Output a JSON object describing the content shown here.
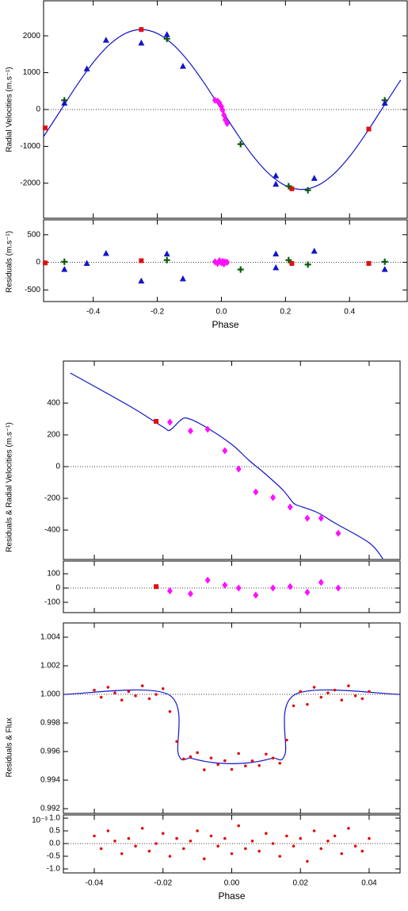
{
  "chart_data": [
    {
      "type": "scatter",
      "ylabel": "Radial Velocities (m.s⁻¹)",
      "xlim": [
        -0.555,
        0.58
      ],
      "ylim": [
        -2950,
        2950
      ],
      "xticks": [
        -0.4,
        -0.2,
        {
          "value": 0,
          "label": "0.0"
        },
        0.2,
        0.4
      ],
      "yticks": [
        2000,
        1000,
        0,
        -1000,
        -2000
      ],
      "hline": 0,
      "show_xtick_labels": false,
      "series": [
        {
          "kind": "line",
          "color": "#1414c8",
          "x": [
            -0.555,
            -0.5,
            -0.45,
            -0.4,
            -0.35,
            -0.3,
            -0.25,
            -0.2,
            -0.15,
            -0.1,
            -0.05,
            0,
            0.05,
            0.1,
            0.15,
            0.2,
            0.25,
            0.3,
            0.35,
            0.4,
            0.45,
            0.5,
            0.55,
            0.56
          ],
          "values": [
            -735,
            0,
            671,
            1276,
            1756,
            2064,
            2170,
            2064,
            1756,
            1276,
            671,
            0,
            -671,
            -1276,
            -1756,
            -2064,
            -2170,
            -2064,
            -1756,
            -1276,
            -671,
            0,
            671,
            799
          ]
        },
        {
          "kind": "square",
          "color": "#e01010",
          "x": [
            -0.55,
            -0.25,
            0.22,
            0.46
          ],
          "values": [
            -500,
            2170,
            -2150,
            -530
          ]
        },
        {
          "kind": "plus",
          "color": "#0a5a0a",
          "x": [
            -0.49,
            -0.17,
            0.06,
            0.21,
            0.27,
            0.51
          ],
          "values": [
            250,
            1920,
            -940,
            -2080,
            -2190,
            250
          ]
        },
        {
          "kind": "triangle",
          "color": "#1414c8",
          "x": [
            -0.49,
            -0.42,
            -0.36,
            -0.25,
            -0.17,
            -0.12,
            0.17,
            0.17,
            0.29,
            0.51
          ],
          "values": [
            170,
            1100,
            1880,
            1800,
            2030,
            1170,
            -1800,
            -2030,
            -1870,
            170
          ]
        },
        {
          "kind": "diamond",
          "color": "#ff10ff",
          "x": [
            -0.02,
            -0.012,
            -0.006,
            0,
            0.004,
            0.008,
            0.012,
            0.018
          ],
          "values": [
            250,
            230,
            180,
            80,
            -20,
            -150,
            -280,
            -380
          ]
        }
      ]
    },
    {
      "type": "scatter",
      "ylabel": "Residuals (m.s⁻¹)",
      "xlabel": "Phase",
      "xlim": [
        -0.555,
        0.58
      ],
      "ylim": [
        -710,
        770
      ],
      "xticks": [
        -0.4,
        -0.2,
        {
          "value": 0,
          "label": "0.0"
        },
        0.2,
        0.4
      ],
      "yticks": [
        500,
        0,
        -500
      ],
      "hline": 0,
      "show_xtick_labels": true,
      "series": [
        {
          "kind": "square",
          "color": "#e01010",
          "x": [
            -0.55,
            -0.25,
            0.22,
            0.46
          ],
          "values": [
            -10,
            30,
            -20,
            -20
          ]
        },
        {
          "kind": "plus",
          "color": "#0a5a0a",
          "x": [
            -0.49,
            -0.17,
            0.06,
            0.21,
            0.27,
            0.51
          ],
          "values": [
            10,
            40,
            -130,
            40,
            -40,
            10
          ]
        },
        {
          "kind": "triangle",
          "color": "#1414c8",
          "x": [
            -0.49,
            -0.42,
            -0.36,
            -0.25,
            -0.17,
            -0.12,
            0.17,
            0.17,
            0.29,
            0.51
          ],
          "values": [
            -130,
            -20,
            160,
            -340,
            150,
            -300,
            -100,
            150,
            200,
            -130
          ]
        },
        {
          "kind": "diamond",
          "color": "#ff10ff",
          "x": [
            -0.02,
            -0.012,
            -0.006,
            0,
            0.004,
            0.008,
            0.012,
            0.018
          ],
          "values": [
            10,
            -20,
            30,
            -10,
            20,
            -30,
            10,
            0
          ]
        }
      ]
    },
    {
      "type": "scatter",
      "ylabel": "Residuals & Radial Velocities (m.s⁻¹)",
      "xlim": [
        -0.049,
        0.049
      ],
      "ylim": [
        -585,
        665
      ],
      "xticks": [
        -0.04,
        -0.02,
        {
          "value": 0,
          "label": "0.00"
        },
        0.02,
        0.04
      ],
      "yticks": [
        400,
        200,
        0,
        -200,
        -400
      ],
      "hline": 0,
      "show_xtick_labels": false,
      "series": [
        {
          "kind": "line",
          "color": "#1414c8",
          "x": [
            -0.047,
            -0.03,
            -0.02,
            -0.018,
            -0.015,
            -0.013,
            -0.008,
            0,
            0.005,
            0.01,
            0.015,
            0.018,
            0.02,
            0.025,
            0.03,
            0.04,
            0.044
          ],
          "values": [
            590,
            385,
            250,
            230,
            290,
            305,
            255,
            140,
            40,
            -50,
            -150,
            -230,
            -250,
            -290,
            -355,
            -480,
            -580
          ]
        },
        {
          "kind": "square",
          "color": "#e01010",
          "x": [
            -0.022
          ],
          "values": [
            285
          ]
        },
        {
          "kind": "diamond",
          "color": "#ff10ff",
          "x": [
            -0.018,
            -0.012,
            -0.007,
            -0.002,
            0.002,
            0.007,
            0.012,
            0.017,
            0.022,
            0.026,
            0.031
          ],
          "values": [
            280,
            225,
            235,
            100,
            -15,
            -160,
            -195,
            -255,
            -325,
            -325,
            -420
          ]
        }
      ]
    },
    {
      "type": "scatter",
      "xlim": [
        -0.049,
        0.049
      ],
      "ylim": [
        -172,
        189
      ],
      "xticks": [
        -0.04,
        -0.02,
        {
          "value": 0,
          "label": "0.00"
        },
        0.02,
        0.04
      ],
      "yticks": [
        100,
        0,
        -100
      ],
      "hline": 0,
      "show_xtick_labels": false,
      "series": [
        {
          "kind": "square",
          "color": "#e01010",
          "x": [
            -0.022
          ],
          "values": [
            10
          ]
        },
        {
          "kind": "diamond",
          "color": "#ff10ff",
          "x": [
            -0.018,
            -0.012,
            -0.007,
            -0.002,
            0.002,
            0.007,
            0.012,
            0.017,
            0.022,
            0.026,
            0.031
          ],
          "values": [
            -20,
            -40,
            55,
            20,
            0,
            -50,
            0,
            10,
            -30,
            40,
            0
          ]
        }
      ]
    },
    {
      "type": "scatter",
      "ylabel": "Residuals & Flux",
      "xlim": [
        -0.049,
        0.049
      ],
      "ylim": [
        0.99167,
        1.005
      ],
      "xticks": [
        -0.04,
        -0.02,
        {
          "value": 0,
          "label": "0.00"
        },
        0.02,
        0.04
      ],
      "yticks": [
        1.004,
        1.002,
        {
          "value": 1,
          "label": "1.000"
        },
        0.998,
        0.996,
        0.994,
        0.992
      ],
      "hline": 1,
      "show_xtick_labels": false,
      "series": [
        {
          "kind": "line",
          "color": "#1414c8",
          "x": [
            -0.049,
            -0.0185,
            -0.0155,
            -0.012,
            -0.008,
            -0.004,
            0,
            0.004,
            0.008,
            0.012,
            0.0155,
            0.0185,
            0.049
          ],
          "values": [
            1,
            1,
            0.9958,
            0.99554,
            0.99532,
            0.99519,
            0.99515,
            0.99519,
            0.99532,
            0.99554,
            0.9958,
            1,
            1
          ]
        },
        {
          "kind": "dot",
          "color": "#e01010",
          "x": [
            -0.04,
            -0.038,
            -0.036,
            -0.034,
            -0.032,
            -0.03,
            -0.028,
            -0.026,
            -0.024,
            -0.022,
            -0.02,
            -0.018,
            -0.016,
            -0.014,
            -0.012,
            -0.01,
            -0.008,
            -0.006,
            -0.004,
            -0.002,
            0,
            0.002,
            0.004,
            0.006,
            0.008,
            0.01,
            0.012,
            0.014,
            0.016,
            0.018,
            0.02,
            0.022,
            0.024,
            0.026,
            0.028,
            0.03,
            0.032,
            0.034,
            0.036,
            0.038,
            0.04
          ],
          "values": [
            1.0003,
            0.9998,
            1.0005,
            1.0001,
            0.9996,
            1.0002,
            0.9999,
            1.0006,
            0.9997,
            1.0,
            1.0004,
            0.9988,
            0.9967,
            0.99548,
            0.99564,
            0.99592,
            0.99472,
            0.99555,
            0.99509,
            0.99536,
            0.99475,
            0.99586,
            0.99499,
            0.99535,
            0.99502,
            0.99582,
            0.99554,
            0.99518,
            0.9968,
            0.9992,
            1.0002,
            0.9993,
            1.0005,
            0.9998,
            1.0001,
            1.0003,
            0.9996,
            1.0006,
            0.9999,
            0.9997,
            1.0002
          ]
        }
      ]
    },
    {
      "type": "scatter",
      "xlabel": "Phase",
      "annotation": "10⁻³",
      "xlim": [
        -0.049,
        0.049
      ],
      "ylim": [
        -1.156,
        1.125
      ],
      "xticks": [
        -0.04,
        -0.02,
        {
          "value": 0,
          "label": "0.00"
        },
        0.02,
        0.04
      ],
      "yticks": [
        {
          "value": 1,
          "label": "1.0"
        },
        0.5,
        {
          "value": 0,
          "label": "0.0"
        },
        -0.5,
        {
          "value": -1,
          "label": "-1.0"
        }
      ],
      "hline": 0,
      "show_xtick_labels": true,
      "series": [
        {
          "kind": "dot",
          "color": "#e01010",
          "x": [
            -0.04,
            -0.038,
            -0.036,
            -0.034,
            -0.032,
            -0.03,
            -0.028,
            -0.026,
            -0.024,
            -0.022,
            -0.02,
            -0.018,
            -0.016,
            -0.014,
            -0.012,
            -0.01,
            -0.008,
            -0.006,
            -0.004,
            -0.002,
            0,
            0.002,
            0.004,
            0.006,
            0.008,
            0.01,
            0.012,
            0.014,
            0.016,
            0.018,
            0.02,
            0.022,
            0.024,
            0.026,
            0.028,
            0.03,
            0.032,
            0.034,
            0.036,
            0.038,
            0.04
          ],
          "values": [
            0.3,
            -0.2,
            0.5,
            0.1,
            -0.4,
            0.2,
            -0.1,
            0.6,
            -0.3,
            0.0,
            0.4,
            -0.5,
            0.2,
            -0.2,
            0.1,
            0.5,
            -0.6,
            0.3,
            -0.1,
            0.2,
            -0.4,
            0.7,
            -0.2,
            0.1,
            -0.3,
            0.4,
            0.0,
            -0.5,
            0.3,
            -0.1,
            0.2,
            -0.7,
            0.5,
            -0.2,
            0.1,
            0.3,
            -0.4,
            0.6,
            -0.1,
            -0.3,
            0.2
          ]
        }
      ]
    }
  ]
}
